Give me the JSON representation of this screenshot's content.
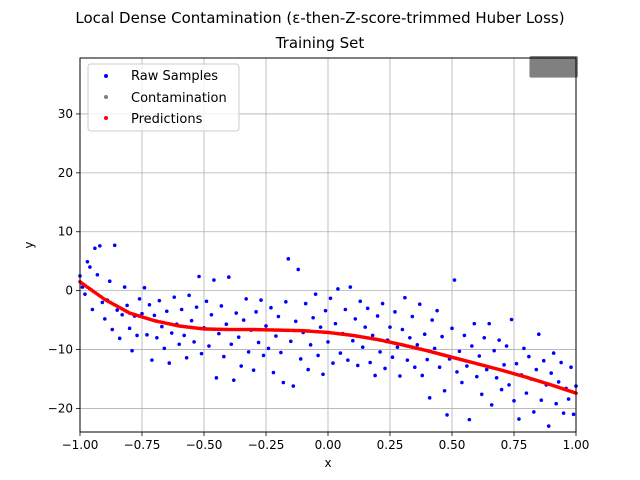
{
  "chart_data": {
    "type": "scatter",
    "title": "Local Dense Contamination (ε-then-Z-score-trimmed Huber Loss)",
    "subtitle": "Training Set",
    "xlabel": "x",
    "ylabel": "y",
    "xlim": [
      -1.0,
      1.0
    ],
    "ylim": [
      -24,
      39.5
    ],
    "xticks": [
      -1.0,
      -0.75,
      -0.5,
      -0.25,
      0.0,
      0.25,
      0.5,
      0.75,
      1.0
    ],
    "xtick_labels": [
      "−1.00",
      "−0.75",
      "−0.50",
      "−0.25",
      "0.00",
      "0.25",
      "0.50",
      "0.75",
      "1.00"
    ],
    "yticks": [
      -20,
      -10,
      0,
      10,
      20,
      30
    ],
    "ytick_labels": [
      "−20",
      "−10",
      "0",
      "10",
      "20",
      "30"
    ],
    "grid": true,
    "legend_position": "top-left",
    "series": [
      {
        "name": "Raw Samples",
        "color": "#0000ff",
        "points": [
          [
            -1.0,
            2.5
          ],
          [
            -0.99,
            0.6
          ],
          [
            -0.98,
            -0.6
          ],
          [
            -0.97,
            4.9
          ],
          [
            -0.96,
            4.0
          ],
          [
            -0.95,
            -3.2
          ],
          [
            -0.94,
            7.2
          ],
          [
            -0.93,
            2.7
          ],
          [
            -0.92,
            7.6
          ],
          [
            -0.91,
            -2.0
          ],
          [
            -0.9,
            -4.8
          ],
          [
            -0.89,
            -1.6
          ],
          [
            -0.88,
            1.6
          ],
          [
            -0.87,
            -6.6
          ],
          [
            -0.86,
            7.7
          ],
          [
            -0.85,
            -3.3
          ],
          [
            -0.84,
            -8.1
          ],
          [
            -0.83,
            -4.1
          ],
          [
            -0.82,
            0.6
          ],
          [
            -0.81,
            -2.5
          ],
          [
            -0.8,
            -6.4
          ],
          [
            -0.79,
            -10.2
          ],
          [
            -0.78,
            -4.3
          ],
          [
            -0.77,
            -7.6
          ],
          [
            -0.76,
            -1.4
          ],
          [
            -0.75,
            -3.9
          ],
          [
            -0.74,
            0.5
          ],
          [
            -0.73,
            -7.5
          ],
          [
            -0.72,
            -2.4
          ],
          [
            -0.71,
            -11.8
          ],
          [
            -0.7,
            -4.2
          ],
          [
            -0.69,
            -8.0
          ],
          [
            -0.68,
            -1.7
          ],
          [
            -0.67,
            -6.1
          ],
          [
            -0.66,
            -9.8
          ],
          [
            -0.65,
            -3.5
          ],
          [
            -0.64,
            -12.3
          ],
          [
            -0.63,
            -7.2
          ],
          [
            -0.62,
            -1.1
          ],
          [
            -0.61,
            -5.7
          ],
          [
            -0.6,
            -9.1
          ],
          [
            -0.59,
            -3.2
          ],
          [
            -0.58,
            -7.6
          ],
          [
            -0.57,
            -11.4
          ],
          [
            -0.56,
            -0.8
          ],
          [
            -0.55,
            -5.1
          ],
          [
            -0.54,
            -8.7
          ],
          [
            -0.53,
            -2.8
          ],
          [
            -0.52,
            2.4
          ],
          [
            -0.51,
            -10.7
          ],
          [
            -0.5,
            -6.3
          ],
          [
            -0.49,
            -1.8
          ],
          [
            -0.48,
            -9.4
          ],
          [
            -0.47,
            -4.1
          ],
          [
            -0.46,
            1.8
          ],
          [
            -0.45,
            -14.8
          ],
          [
            -0.44,
            -7.3
          ],
          [
            -0.43,
            -2.6
          ],
          [
            -0.42,
            -11.2
          ],
          [
            -0.41,
            -5.7
          ],
          [
            -0.4,
            2.3
          ],
          [
            -0.39,
            -9.1
          ],
          [
            -0.38,
            -15.2
          ],
          [
            -0.37,
            -3.8
          ],
          [
            -0.36,
            -7.9
          ],
          [
            -0.35,
            -12.8
          ],
          [
            -0.34,
            -5.0
          ],
          [
            -0.33,
            -1.4
          ],
          [
            -0.32,
            -10.4
          ],
          [
            -0.31,
            -6.7
          ],
          [
            -0.3,
            -13.5
          ],
          [
            -0.29,
            -3.6
          ],
          [
            -0.28,
            -8.8
          ],
          [
            -0.27,
            -1.6
          ],
          [
            -0.26,
            -11.0
          ],
          [
            -0.25,
            -6.0
          ],
          [
            -0.24,
            -9.8
          ],
          [
            -0.23,
            -2.9
          ],
          [
            -0.22,
            -13.9
          ],
          [
            -0.21,
            -7.7
          ],
          [
            -0.2,
            -4.4
          ],
          [
            -0.19,
            -10.5
          ],
          [
            -0.18,
            -15.6
          ],
          [
            -0.17,
            -1.9
          ],
          [
            -0.16,
            5.4
          ],
          [
            -0.15,
            -8.6
          ],
          [
            -0.14,
            -16.2
          ],
          [
            -0.13,
            -5.2
          ],
          [
            -0.12,
            3.6
          ],
          [
            -0.11,
            -11.6
          ],
          [
            -0.1,
            -7.1
          ],
          [
            -0.09,
            -2.2
          ],
          [
            -0.08,
            -13.4
          ],
          [
            -0.07,
            -9.2
          ],
          [
            -0.06,
            -4.6
          ],
          [
            -0.05,
            -0.6
          ],
          [
            -0.04,
            -11.0
          ],
          [
            -0.03,
            -6.2
          ],
          [
            -0.02,
            -14.2
          ],
          [
            -0.01,
            -3.4
          ],
          [
            0.0,
            -8.7
          ],
          [
            0.01,
            -1.3
          ],
          [
            0.02,
            -12.3
          ],
          [
            0.03,
            -5.6
          ],
          [
            0.04,
            0.3
          ],
          [
            0.05,
            -10.6
          ],
          [
            0.06,
            -7.3
          ],
          [
            0.07,
            -3.2
          ],
          [
            0.08,
            -11.8
          ],
          [
            0.09,
            0.6
          ],
          [
            0.1,
            -8.5
          ],
          [
            0.11,
            -4.8
          ],
          [
            0.12,
            -12.7
          ],
          [
            0.13,
            -1.8
          ],
          [
            0.14,
            -9.6
          ],
          [
            0.15,
            -6.2
          ],
          [
            0.16,
            -3.0
          ],
          [
            0.17,
            -12.2
          ],
          [
            0.18,
            -7.6
          ],
          [
            0.19,
            -14.4
          ],
          [
            0.2,
            -4.3
          ],
          [
            0.21,
            -10.4
          ],
          [
            0.22,
            -2.2
          ],
          [
            0.23,
            -13.2
          ],
          [
            0.24,
            -8.4
          ],
          [
            0.25,
            -6.2
          ],
          [
            0.26,
            -11.3
          ],
          [
            0.27,
            -3.6
          ],
          [
            0.28,
            -9.6
          ],
          [
            0.29,
            -14.5
          ],
          [
            0.3,
            -6.6
          ],
          [
            0.31,
            -1.2
          ],
          [
            0.32,
            -11.8
          ],
          [
            0.33,
            -8.0
          ],
          [
            0.34,
            -4.4
          ],
          [
            0.35,
            -13.0
          ],
          [
            0.36,
            -9.2
          ],
          [
            0.37,
            -2.3
          ],
          [
            0.38,
            -14.4
          ],
          [
            0.39,
            -7.4
          ],
          [
            0.4,
            -11.7
          ],
          [
            0.41,
            -18.2
          ],
          [
            0.42,
            -5.0
          ],
          [
            0.43,
            -9.8
          ],
          [
            0.44,
            -3.4
          ],
          [
            0.45,
            -13.0
          ],
          [
            0.46,
            -7.8
          ],
          [
            0.47,
            -17.0
          ],
          [
            0.48,
            -21.1
          ],
          [
            0.49,
            -11.6
          ],
          [
            0.5,
            -6.4
          ],
          [
            0.51,
            1.8
          ],
          [
            0.52,
            -13.8
          ],
          [
            0.53,
            -10.3
          ],
          [
            0.54,
            -15.6
          ],
          [
            0.55,
            -7.6
          ],
          [
            0.56,
            -12.8
          ],
          [
            0.57,
            -21.9
          ],
          [
            0.58,
            -9.4
          ],
          [
            0.59,
            -5.6
          ],
          [
            0.6,
            -14.6
          ],
          [
            0.61,
            -11.1
          ],
          [
            0.62,
            -17.6
          ],
          [
            0.63,
            -8.0
          ],
          [
            0.64,
            -13.4
          ],
          [
            0.65,
            -5.6
          ],
          [
            0.66,
            -19.4
          ],
          [
            0.67,
            -10.2
          ],
          [
            0.68,
            -14.8
          ],
          [
            0.69,
            -8.4
          ],
          [
            0.7,
            -16.8
          ],
          [
            0.71,
            -12.6
          ],
          [
            0.72,
            -9.4
          ],
          [
            0.73,
            -16.0
          ],
          [
            0.74,
            -4.9
          ],
          [
            0.75,
            -18.7
          ],
          [
            0.76,
            -12.4
          ],
          [
            0.77,
            -21.8
          ],
          [
            0.78,
            -14.3
          ],
          [
            0.79,
            -9.8
          ],
          [
            0.8,
            -17.4
          ],
          [
            0.81,
            -11.2
          ],
          [
            0.82,
            -15.0
          ],
          [
            0.83,
            -20.6
          ],
          [
            0.84,
            -13.4
          ],
          [
            0.85,
            -7.4
          ],
          [
            0.86,
            -18.6
          ],
          [
            0.87,
            -11.9
          ],
          [
            0.88,
            -16.0
          ],
          [
            0.89,
            -23.0
          ],
          [
            0.9,
            -14.0
          ],
          [
            0.91,
            -10.6
          ],
          [
            0.92,
            -19.2
          ],
          [
            0.93,
            -15.5
          ],
          [
            0.94,
            -12.2
          ],
          [
            0.95,
            -20.8
          ],
          [
            0.96,
            -16.6
          ],
          [
            0.97,
            -18.4
          ],
          [
            0.98,
            -13.0
          ],
          [
            0.99,
            -21.0
          ],
          [
            1.0,
            -16.2
          ]
        ]
      },
      {
        "name": "Contamination",
        "color": "#808080",
        "region": {
          "x_range": [
            0.82,
            1.0
          ],
          "y_range": [
            36.5,
            39.5
          ]
        }
      },
      {
        "name": "Predictions",
        "color": "#ff0000",
        "x": [
          -1.0,
          -0.9,
          -0.8,
          -0.7,
          -0.6,
          -0.5,
          -0.4,
          -0.3,
          -0.2,
          -0.1,
          0.0,
          0.1,
          0.2,
          0.3,
          0.4,
          0.5,
          0.6,
          0.7,
          0.8,
          0.9,
          1.0
        ],
        "values": [
          1.5,
          -1.5,
          -3.8,
          -5.1,
          -6.0,
          -6.5,
          -6.6,
          -6.6,
          -6.7,
          -6.8,
          -7.1,
          -7.6,
          -8.3,
          -9.2,
          -10.2,
          -11.3,
          -12.4,
          -13.5,
          -14.7,
          -16.0,
          -17.4
        ]
      }
    ]
  }
}
